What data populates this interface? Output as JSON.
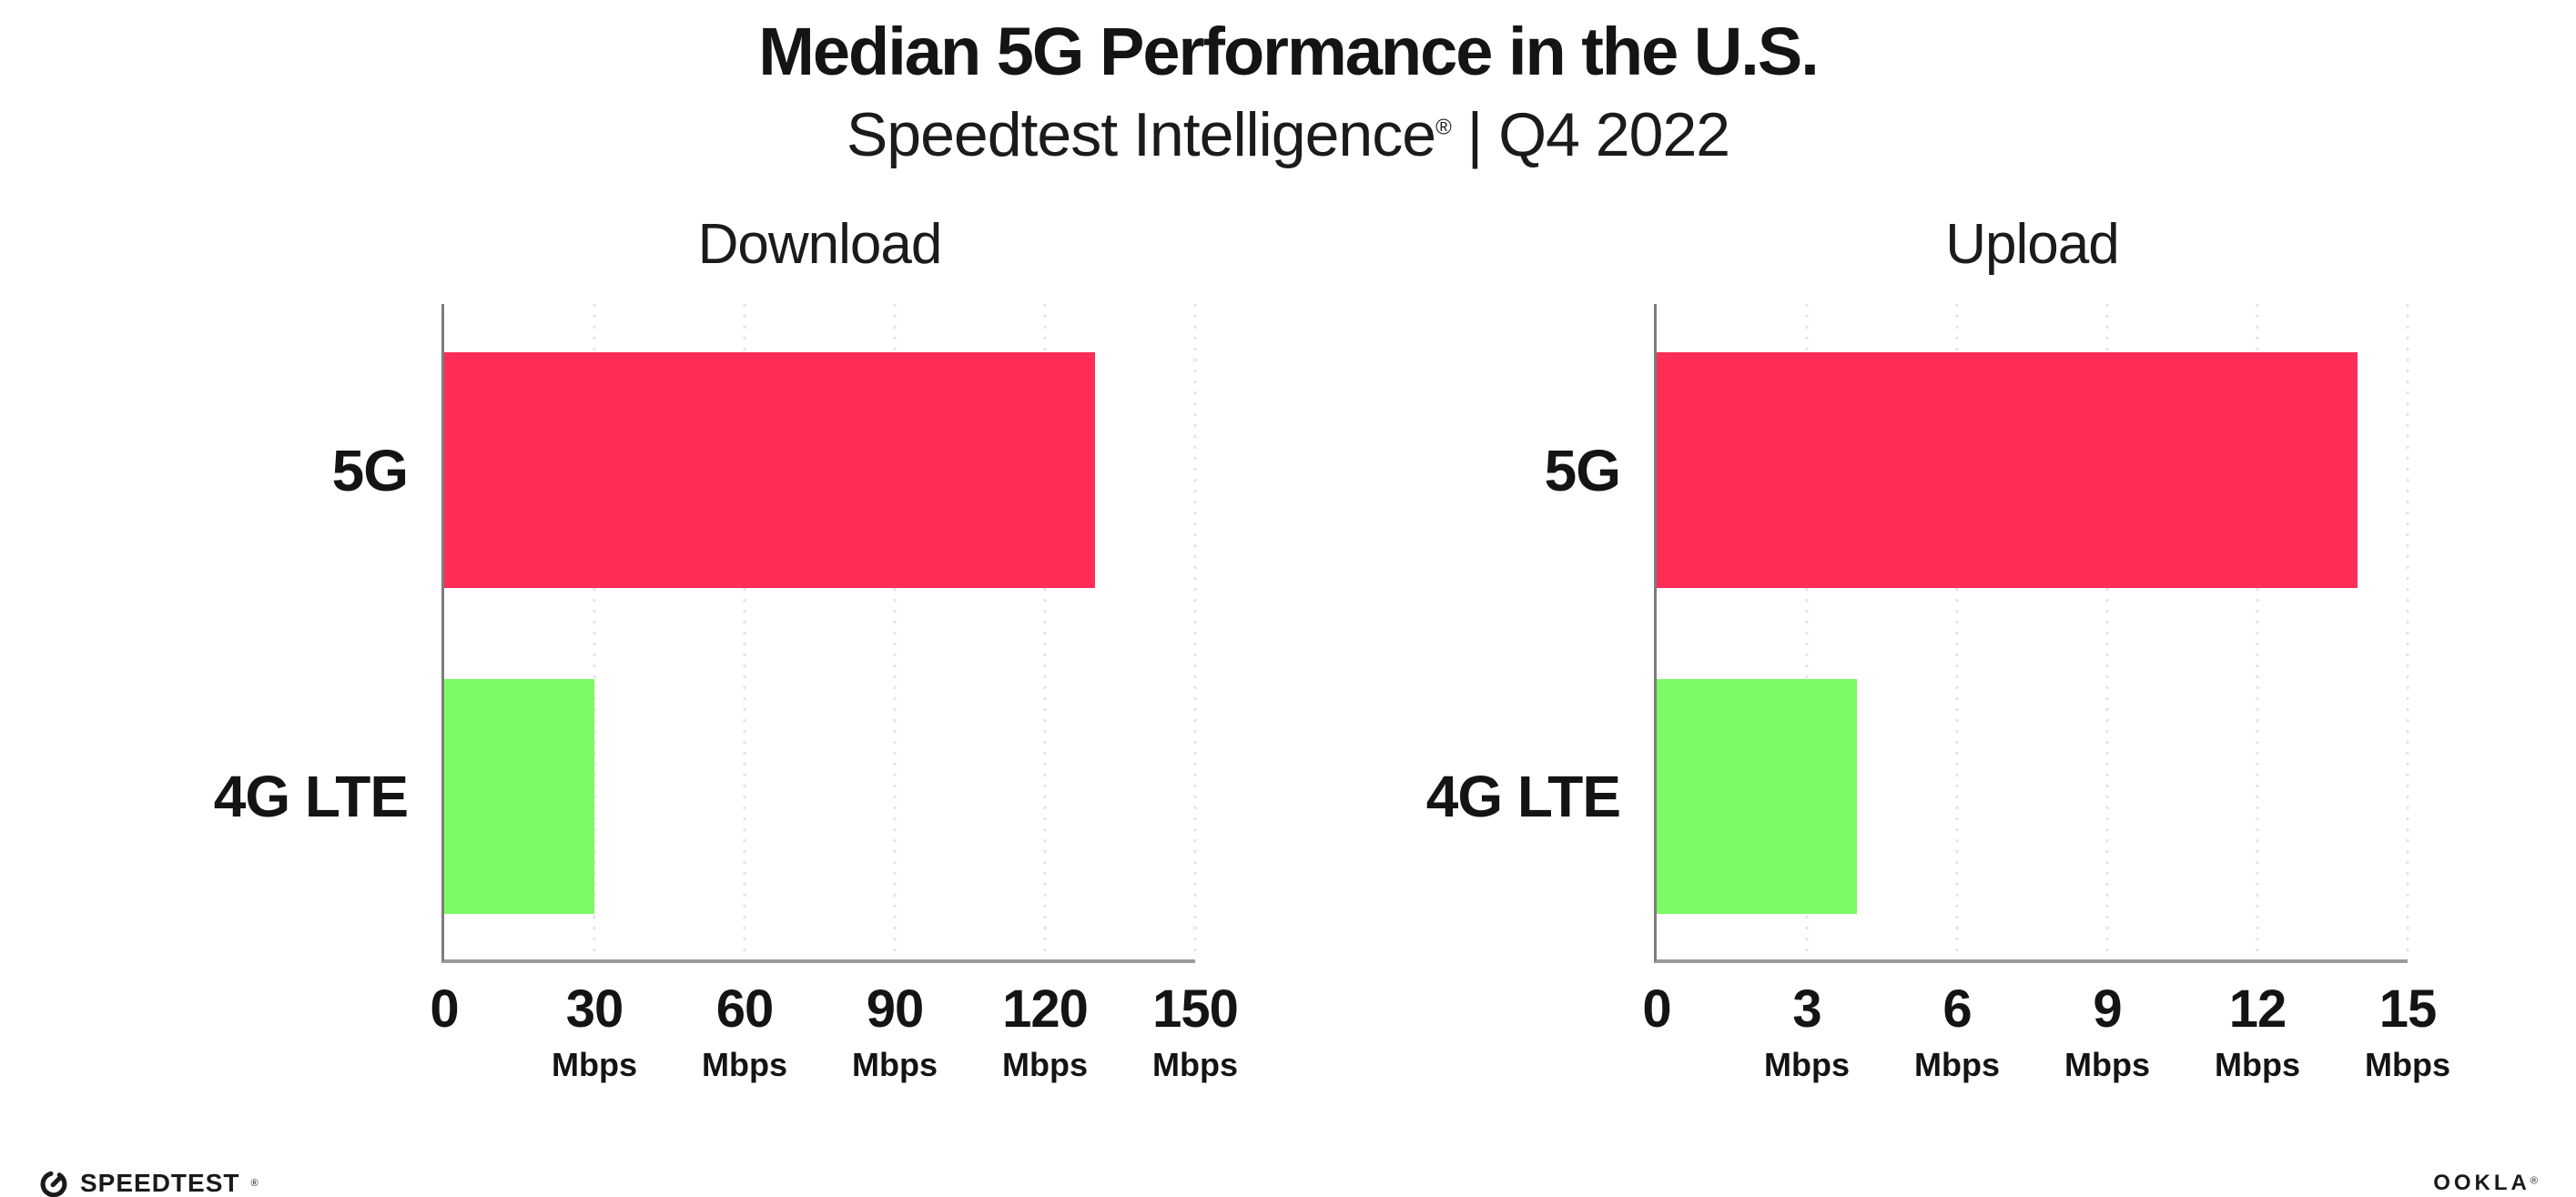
{
  "page": {
    "title": "Median 5G Performance in the U.S.",
    "subtitle_brand": "Speedtest Intelligence",
    "subtitle_reg": "®",
    "subtitle_rest": " | Q4 2022"
  },
  "colors": {
    "bar_5g": "#fd2d58",
    "bar_4g_lte": "#7dfb64",
    "gridline": "#e3e3ec",
    "axis_line": "#7d7d7d",
    "baseline": "#9b9b9b",
    "text": "#141414"
  },
  "chart_data": [
    {
      "type": "bar",
      "orientation": "horizontal",
      "title": "Download",
      "unit": "Mbps",
      "xlim": [
        0,
        150
      ],
      "grid": "dotted-vertical",
      "categories": [
        "5G",
        "4G LTE"
      ],
      "values": [
        130,
        30
      ],
      "xmax": 150,
      "bars": [
        {
          "label": "5G",
          "value": 130,
          "color": "#fd2d58"
        },
        {
          "label": "4G LTE",
          "value": 30,
          "color": "#7dfb64"
        }
      ],
      "ticks": [
        {
          "label": "0",
          "unit": ""
        },
        {
          "label": "30",
          "unit": "Mbps"
        },
        {
          "label": "60",
          "unit": "Mbps"
        },
        {
          "label": "90",
          "unit": "Mbps"
        },
        {
          "label": "120",
          "unit": "Mbps"
        },
        {
          "label": "150",
          "unit": "Mbps"
        }
      ]
    },
    {
      "type": "bar",
      "orientation": "horizontal",
      "title": "Upload",
      "unit": "Mbps",
      "xlim": [
        0,
        15
      ],
      "grid": "dotted-vertical",
      "categories": [
        "5G",
        "4G LTE"
      ],
      "values": [
        14,
        4
      ],
      "xmax": 15,
      "bars": [
        {
          "label": "5G",
          "value": 14,
          "color": "#fd2d58"
        },
        {
          "label": "4G LTE",
          "value": 4,
          "color": "#7dfb64"
        }
      ],
      "ticks": [
        {
          "label": "0",
          "unit": ""
        },
        {
          "label": "3",
          "unit": "Mbps"
        },
        {
          "label": "6",
          "unit": "Mbps"
        },
        {
          "label": "9",
          "unit": "Mbps"
        },
        {
          "label": "12",
          "unit": "Mbps"
        },
        {
          "label": "15",
          "unit": "Mbps"
        }
      ]
    }
  ],
  "footer": {
    "speedtest_label": "SPEEDTEST",
    "speedtest_reg": "®",
    "ookla_label": "OOKLA",
    "ookla_reg": "®"
  }
}
